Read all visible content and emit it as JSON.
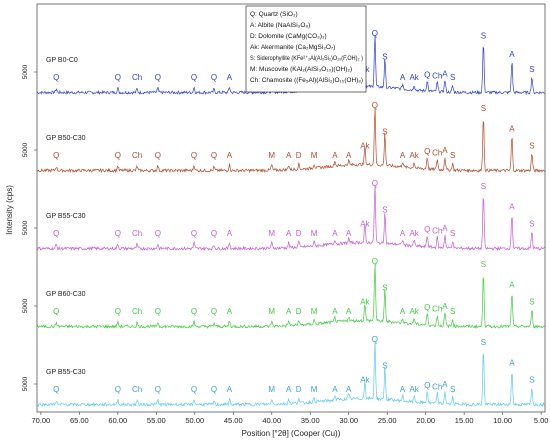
{
  "chart_data": {
    "type": "line",
    "title": "",
    "xlabel": "Position [°2θ] (Cooper (Cu))",
    "ylabel": "Intensity (cps)",
    "x_ticks": [
      "70.00",
      "65.00",
      "60.00",
      "55.00",
      "50.00",
      "45.00",
      "40.00",
      "35.00",
      "30.00",
      "25.00",
      "20.00",
      "15.00",
      "10.00",
      "5.00"
    ],
    "xlim": [
      70.5,
      4.5
    ],
    "y_tick_label": "5000",
    "legend": [
      "Q: Quartz (SiO₂)",
      "A: Albite (NaAlSi₃O₈)",
      "D: Dolomite (CaMg(CO₃)₂)",
      "Ak: Akermanite (Ca₂MgSi₂O₇)",
      "S: Siderophyllite (KFe²⁺₂Al(Al₂Si₂)O₁₀(F,OH)₂ )",
      "M: Muscovite (KAl₂(AlSi₃O₁₀)(OH)₂)",
      "Ch: Chamosite ((Fe₅Al)(AlSi₃)O₁₀(OH)₈)"
    ],
    "peaks": [
      {
        "x": 26.6,
        "h": 1.0,
        "label": "Q"
      },
      {
        "x": 12.5,
        "h": 0.95,
        "label": "S"
      },
      {
        "x": 25.3,
        "h": 0.55,
        "label": "S"
      },
      {
        "x": 8.8,
        "h": 0.6,
        "label": "A"
      },
      {
        "x": 6.2,
        "h": 0.3,
        "label": "S"
      },
      {
        "x": 27.9,
        "h": 0.3,
        "label": "Ak"
      },
      {
        "x": 19.8,
        "h": 0.2,
        "label": "Q"
      },
      {
        "x": 18.5,
        "h": 0.18,
        "label": "Ch"
      },
      {
        "x": 17.5,
        "h": 0.22,
        "label": "A"
      },
      {
        "x": 16.5,
        "h": 0.12,
        "label": "S"
      },
      {
        "x": 21.5,
        "h": 0.1,
        "label": "Ak"
      },
      {
        "x": 23.0,
        "h": 0.09,
        "label": "A"
      },
      {
        "x": 30.0,
        "h": 0.08,
        "label": "A"
      },
      {
        "x": 31.8,
        "h": 0.08,
        "label": "A"
      },
      {
        "x": 34.5,
        "h": 0.07,
        "label": "M"
      },
      {
        "x": 36.5,
        "h": 0.09,
        "label": "D"
      },
      {
        "x": 37.8,
        "h": 0.08,
        "label": "A"
      },
      {
        "x": 40.0,
        "h": 0.09,
        "label": "M"
      },
      {
        "x": 45.5,
        "h": 0.1,
        "label": "A"
      },
      {
        "x": 47.5,
        "h": 0.06,
        "label": "Q"
      },
      {
        "x": 50.1,
        "h": 0.1,
        "label": "Q"
      },
      {
        "x": 54.8,
        "h": 0.08,
        "label": "Q"
      },
      {
        "x": 57.5,
        "h": 0.07,
        "label": "Ch"
      },
      {
        "x": 60.0,
        "h": 0.08,
        "label": "Q"
      },
      {
        "x": 68.0,
        "h": 0.07,
        "label": "Q"
      }
    ],
    "series": [
      {
        "name": "GP B0-C0",
        "color": "#2b3fd1",
        "label_color": "#2b3fd1"
      },
      {
        "name": "GP B50-C30",
        "color": "#b04a2a",
        "label_color": "#b04a2a"
      },
      {
        "name": "GP B55-C30",
        "color": "#c55ad6",
        "label_color": "#c55ad6"
      },
      {
        "name": "GP B60-C30",
        "color": "#3fcc3f",
        "label_color": "#3fcc3f"
      },
      {
        "name": "GP B55-C30",
        "color": "#5bcaf0",
        "label_color": "#3aa0d0"
      }
    ],
    "grid": false
  }
}
